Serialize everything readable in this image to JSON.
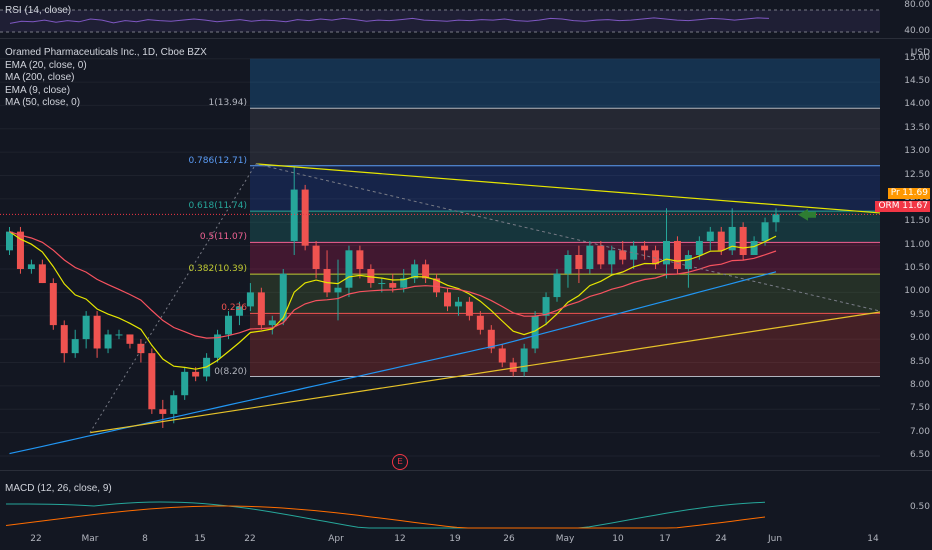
{
  "rsi": {
    "legend": "RSI (14, close)",
    "levels": [
      "80.00",
      "40.00"
    ],
    "values": [
      52,
      56,
      55,
      58,
      54,
      57,
      55,
      60,
      58,
      53,
      57,
      55,
      59,
      57,
      56,
      58,
      60,
      58,
      55,
      57,
      59,
      56,
      58,
      57,
      55,
      59,
      57,
      60,
      58,
      61,
      59,
      56,
      58,
      57,
      59,
      61,
      58,
      57,
      56,
      58,
      57,
      59,
      58,
      60,
      57,
      56,
      58,
      61,
      60,
      57,
      56,
      58,
      59,
      57,
      58,
      60,
      62,
      60,
      58,
      57,
      59,
      61,
      60,
      58,
      60,
      62,
      61
    ]
  },
  "main": {
    "symbol": "Oramed Pharmaceuticals Inc., 1D, Cboe BZX",
    "indicators": [
      "EMA (20, close, 0)",
      "MA (200, close)",
      "EMA (9, close)",
      "MA (50, close, 0)"
    ],
    "currency": "USD",
    "y_ticks": [
      "15.00",
      "14.50",
      "14.00",
      "13.50",
      "13.00",
      "12.50",
      "12.00",
      "11.50",
      "11.00",
      "10.50",
      "10.00",
      "9.50",
      "9.00",
      "8.50",
      "8.00",
      "7.50",
      "7.00",
      "6.50"
    ],
    "price_tags": {
      "pre_label": "Pre",
      "pre_value": "11.69",
      "pre_color": "#ff9800",
      "last_label": "ORMP",
      "last_value": "11.67",
      "last_color": "#f23645"
    },
    "earnings_marker": "E",
    "colors": {
      "up": "#26a69a",
      "down": "#ef5350",
      "ema20": "#f7525f",
      "ema9": "#e6e600",
      "ma50": "#2196f3"
    }
  },
  "fib": {
    "levels": [
      {
        "ratio": "1",
        "label": "1(13.94)",
        "price": 13.94,
        "color": "#b2b5be"
      },
      {
        "ratio": "0.786",
        "label": "0.786(12.71)",
        "price": 12.71,
        "color": "#5b9cf6"
      },
      {
        "ratio": "0.618",
        "label": "0.618(11.74)",
        "price": 11.74,
        "color": "#26a69a"
      },
      {
        "ratio": "0.5",
        "label": "0.5(11.07)",
        "price": 11.07,
        "color": "#f06292"
      },
      {
        "ratio": "0.382",
        "label": "0.382(10.39)",
        "price": 10.39,
        "color": "#c0ca33"
      },
      {
        "ratio": "0.236",
        "label": "0.236",
        "price": 9.55,
        "color": "#ef5350"
      },
      {
        "ratio": "0",
        "label": "0(8.20)",
        "price": 8.2,
        "color": "#b2b5be"
      }
    ],
    "extra_top": 15.0
  },
  "macd": {
    "legend": "MACD (12, 26, close, 9)",
    "y_ticks": [
      "0.50"
    ]
  },
  "x_axis": {
    "labels": [
      "22",
      "Mar",
      "8",
      "15",
      "22",
      "Apr",
      "12",
      "19",
      "26",
      "May",
      "10",
      "17",
      "24",
      "Jun",
      "14"
    ]
  },
  "chart_data": {
    "type": "candlestick",
    "title": "Oramed Pharmaceuticals Inc., 1D, Cboe BZX",
    "ylabel": "USD",
    "ylim": [
      6.2,
      15.4
    ],
    "x_labels": [
      "22",
      "Mar",
      "8",
      "15",
      "22",
      "Apr",
      "12",
      "19",
      "26",
      "May",
      "10",
      "17",
      "24",
      "Jun",
      "14"
    ],
    "ohlc": [
      [
        10.9,
        11.4,
        10.8,
        11.3
      ],
      [
        11.3,
        11.4,
        10.4,
        10.5
      ],
      [
        10.5,
        10.7,
        10.4,
        10.6
      ],
      [
        10.6,
        10.7,
        10.2,
        10.2
      ],
      [
        10.2,
        10.3,
        9.2,
        9.3
      ],
      [
        9.3,
        9.4,
        8.5,
        8.7
      ],
      [
        8.7,
        9.2,
        8.6,
        9.0
      ],
      [
        9.0,
        9.6,
        8.8,
        9.5
      ],
      [
        9.5,
        9.6,
        8.6,
        8.8
      ],
      [
        8.8,
        9.2,
        8.7,
        9.1
      ],
      [
        9.1,
        9.2,
        9.0,
        9.1
      ],
      [
        9.1,
        9.1,
        8.8,
        8.9
      ],
      [
        8.9,
        9.0,
        8.5,
        8.7
      ],
      [
        8.7,
        8.8,
        7.4,
        7.5
      ],
      [
        7.5,
        7.7,
        7.1,
        7.4
      ],
      [
        7.4,
        7.9,
        7.2,
        7.8
      ],
      [
        7.8,
        8.4,
        7.7,
        8.3
      ],
      [
        8.3,
        8.4,
        8.1,
        8.2
      ],
      [
        8.2,
        8.7,
        8.1,
        8.6
      ],
      [
        8.6,
        9.2,
        8.5,
        9.1
      ],
      [
        9.1,
        9.6,
        9.0,
        9.5
      ],
      [
        9.5,
        9.8,
        9.3,
        9.7
      ],
      [
        9.7,
        10.2,
        9.6,
        10.0
      ],
      [
        10.0,
        10.1,
        9.2,
        9.3
      ],
      [
        9.3,
        9.5,
        9.1,
        9.4
      ],
      [
        9.4,
        10.5,
        9.3,
        10.4
      ],
      [
        11.1,
        12.7,
        10.8,
        12.2
      ],
      [
        12.2,
        12.3,
        10.9,
        11.0
      ],
      [
        11.0,
        11.1,
        10.3,
        10.5
      ],
      [
        10.5,
        10.9,
        9.9,
        10.0
      ],
      [
        10.0,
        10.7,
        9.4,
        10.1
      ],
      [
        10.1,
        11.0,
        9.9,
        10.9
      ],
      [
        10.9,
        11.0,
        10.3,
        10.5
      ],
      [
        10.5,
        10.6,
        10.1,
        10.2
      ],
      [
        10.2,
        10.3,
        10.0,
        10.2
      ],
      [
        10.2,
        10.4,
        10.0,
        10.1
      ],
      [
        10.1,
        10.5,
        10.0,
        10.3
      ],
      [
        10.3,
        10.7,
        10.2,
        10.6
      ],
      [
        10.6,
        10.7,
        10.2,
        10.3
      ],
      [
        10.3,
        10.4,
        9.9,
        10.0
      ],
      [
        10.0,
        10.1,
        9.6,
        9.7
      ],
      [
        9.7,
        9.9,
        9.5,
        9.8
      ],
      [
        9.8,
        9.9,
        9.4,
        9.5
      ],
      [
        9.5,
        9.6,
        9.1,
        9.2
      ],
      [
        9.2,
        9.3,
        8.7,
        8.8
      ],
      [
        8.8,
        8.9,
        8.4,
        8.5
      ],
      [
        8.5,
        8.6,
        8.2,
        8.3
      ],
      [
        8.3,
        8.9,
        8.2,
        8.8
      ],
      [
        8.8,
        9.6,
        8.7,
        9.5
      ],
      [
        9.5,
        10.0,
        9.3,
        9.9
      ],
      [
        9.9,
        10.5,
        9.8,
        10.4
      ],
      [
        10.4,
        10.9,
        10.1,
        10.8
      ],
      [
        10.8,
        11.0,
        10.2,
        10.5
      ],
      [
        10.5,
        11.1,
        10.4,
        11.0
      ],
      [
        11.0,
        11.1,
        10.5,
        10.6
      ],
      [
        10.6,
        11.0,
        10.4,
        10.9
      ],
      [
        10.9,
        11.1,
        10.6,
        10.7
      ],
      [
        10.7,
        11.1,
        10.5,
        11.0
      ],
      [
        11.0,
        11.1,
        10.7,
        10.9
      ],
      [
        10.9,
        11.0,
        10.5,
        10.6
      ],
      [
        10.6,
        11.8,
        10.3,
        11.1
      ],
      [
        11.1,
        11.2,
        10.4,
        10.5
      ],
      [
        10.5,
        10.9,
        10.1,
        10.8
      ],
      [
        10.8,
        11.2,
        10.7,
        11.1
      ],
      [
        11.1,
        11.4,
        10.9,
        11.3
      ],
      [
        11.3,
        11.4,
        10.8,
        10.9
      ],
      [
        10.9,
        11.8,
        10.8,
        11.4
      ],
      [
        11.4,
        11.5,
        10.7,
        10.8
      ],
      [
        10.8,
        11.2,
        10.8,
        11.1
      ],
      [
        11.1,
        11.6,
        11.0,
        11.5
      ],
      [
        11.5,
        11.8,
        11.3,
        11.67
      ]
    ]
  }
}
